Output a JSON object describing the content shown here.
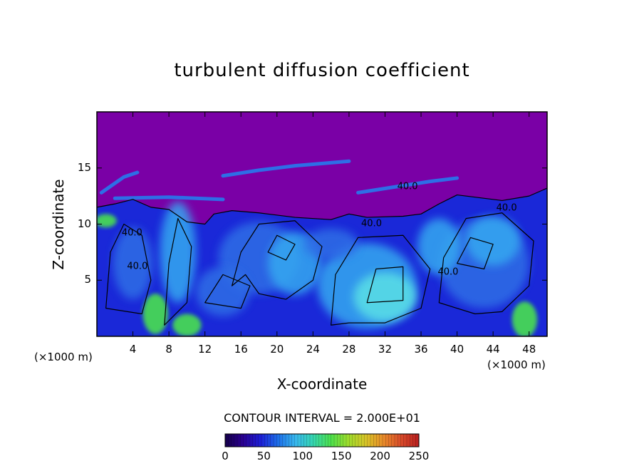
{
  "chart_data": {
    "type": "heatmap",
    "title": "turbulent diffusion coefficient",
    "xlabel": "X-coordinate",
    "ylabel": "Z-coordinate",
    "x_unit_left": "(×1000 m)",
    "x_unit_right": "(×1000 m)",
    "xlim": [
      0,
      50
    ],
    "ylim": [
      0,
      20
    ],
    "x_ticks": [
      4,
      8,
      12,
      16,
      20,
      24,
      28,
      32,
      36,
      40,
      44,
      48
    ],
    "y_ticks": [
      5,
      10,
      15
    ],
    "contour_interval_text": "CONTOUR INTERVAL = 2.000E+01",
    "contour_interval": 20,
    "contour_labels": [
      {
        "text": "40.0",
        "x": 3.9,
        "y": 9.0
      },
      {
        "text": "40.0",
        "x": 4.5,
        "y": 6.0
      },
      {
        "text": "40.0",
        "x": 30.5,
        "y": 9.8
      },
      {
        "text": "40.0",
        "x": 34.5,
        "y": 13.1
      },
      {
        "text": "40.0",
        "x": 45.5,
        "y": 11.2
      },
      {
        "text": "40.0",
        "x": 39.0,
        "y": 5.5
      }
    ],
    "colorbar": {
      "min": 0,
      "max": 250,
      "tick_values": [
        0,
        50,
        100,
        150,
        200,
        250
      ],
      "tick_labels": [
        "0",
        "50",
        "100",
        "150",
        "200",
        "250"
      ],
      "colors": [
        "#15004a",
        "#2a0090",
        "#1e1ed6",
        "#1e6ee8",
        "#38b8ee",
        "#35d6b0",
        "#4ce04c",
        "#9edc2c",
        "#d8c428",
        "#e88a2a",
        "#d84a2a",
        "#b81e1e"
      ]
    },
    "field_colors": {
      "background": "#7a00a6",
      "low": "#1a28d8",
      "mid": "#2e6ee6",
      "high": "#36a8f0",
      "peak": "#5ae0e6",
      "green": "#48e050"
    }
  }
}
